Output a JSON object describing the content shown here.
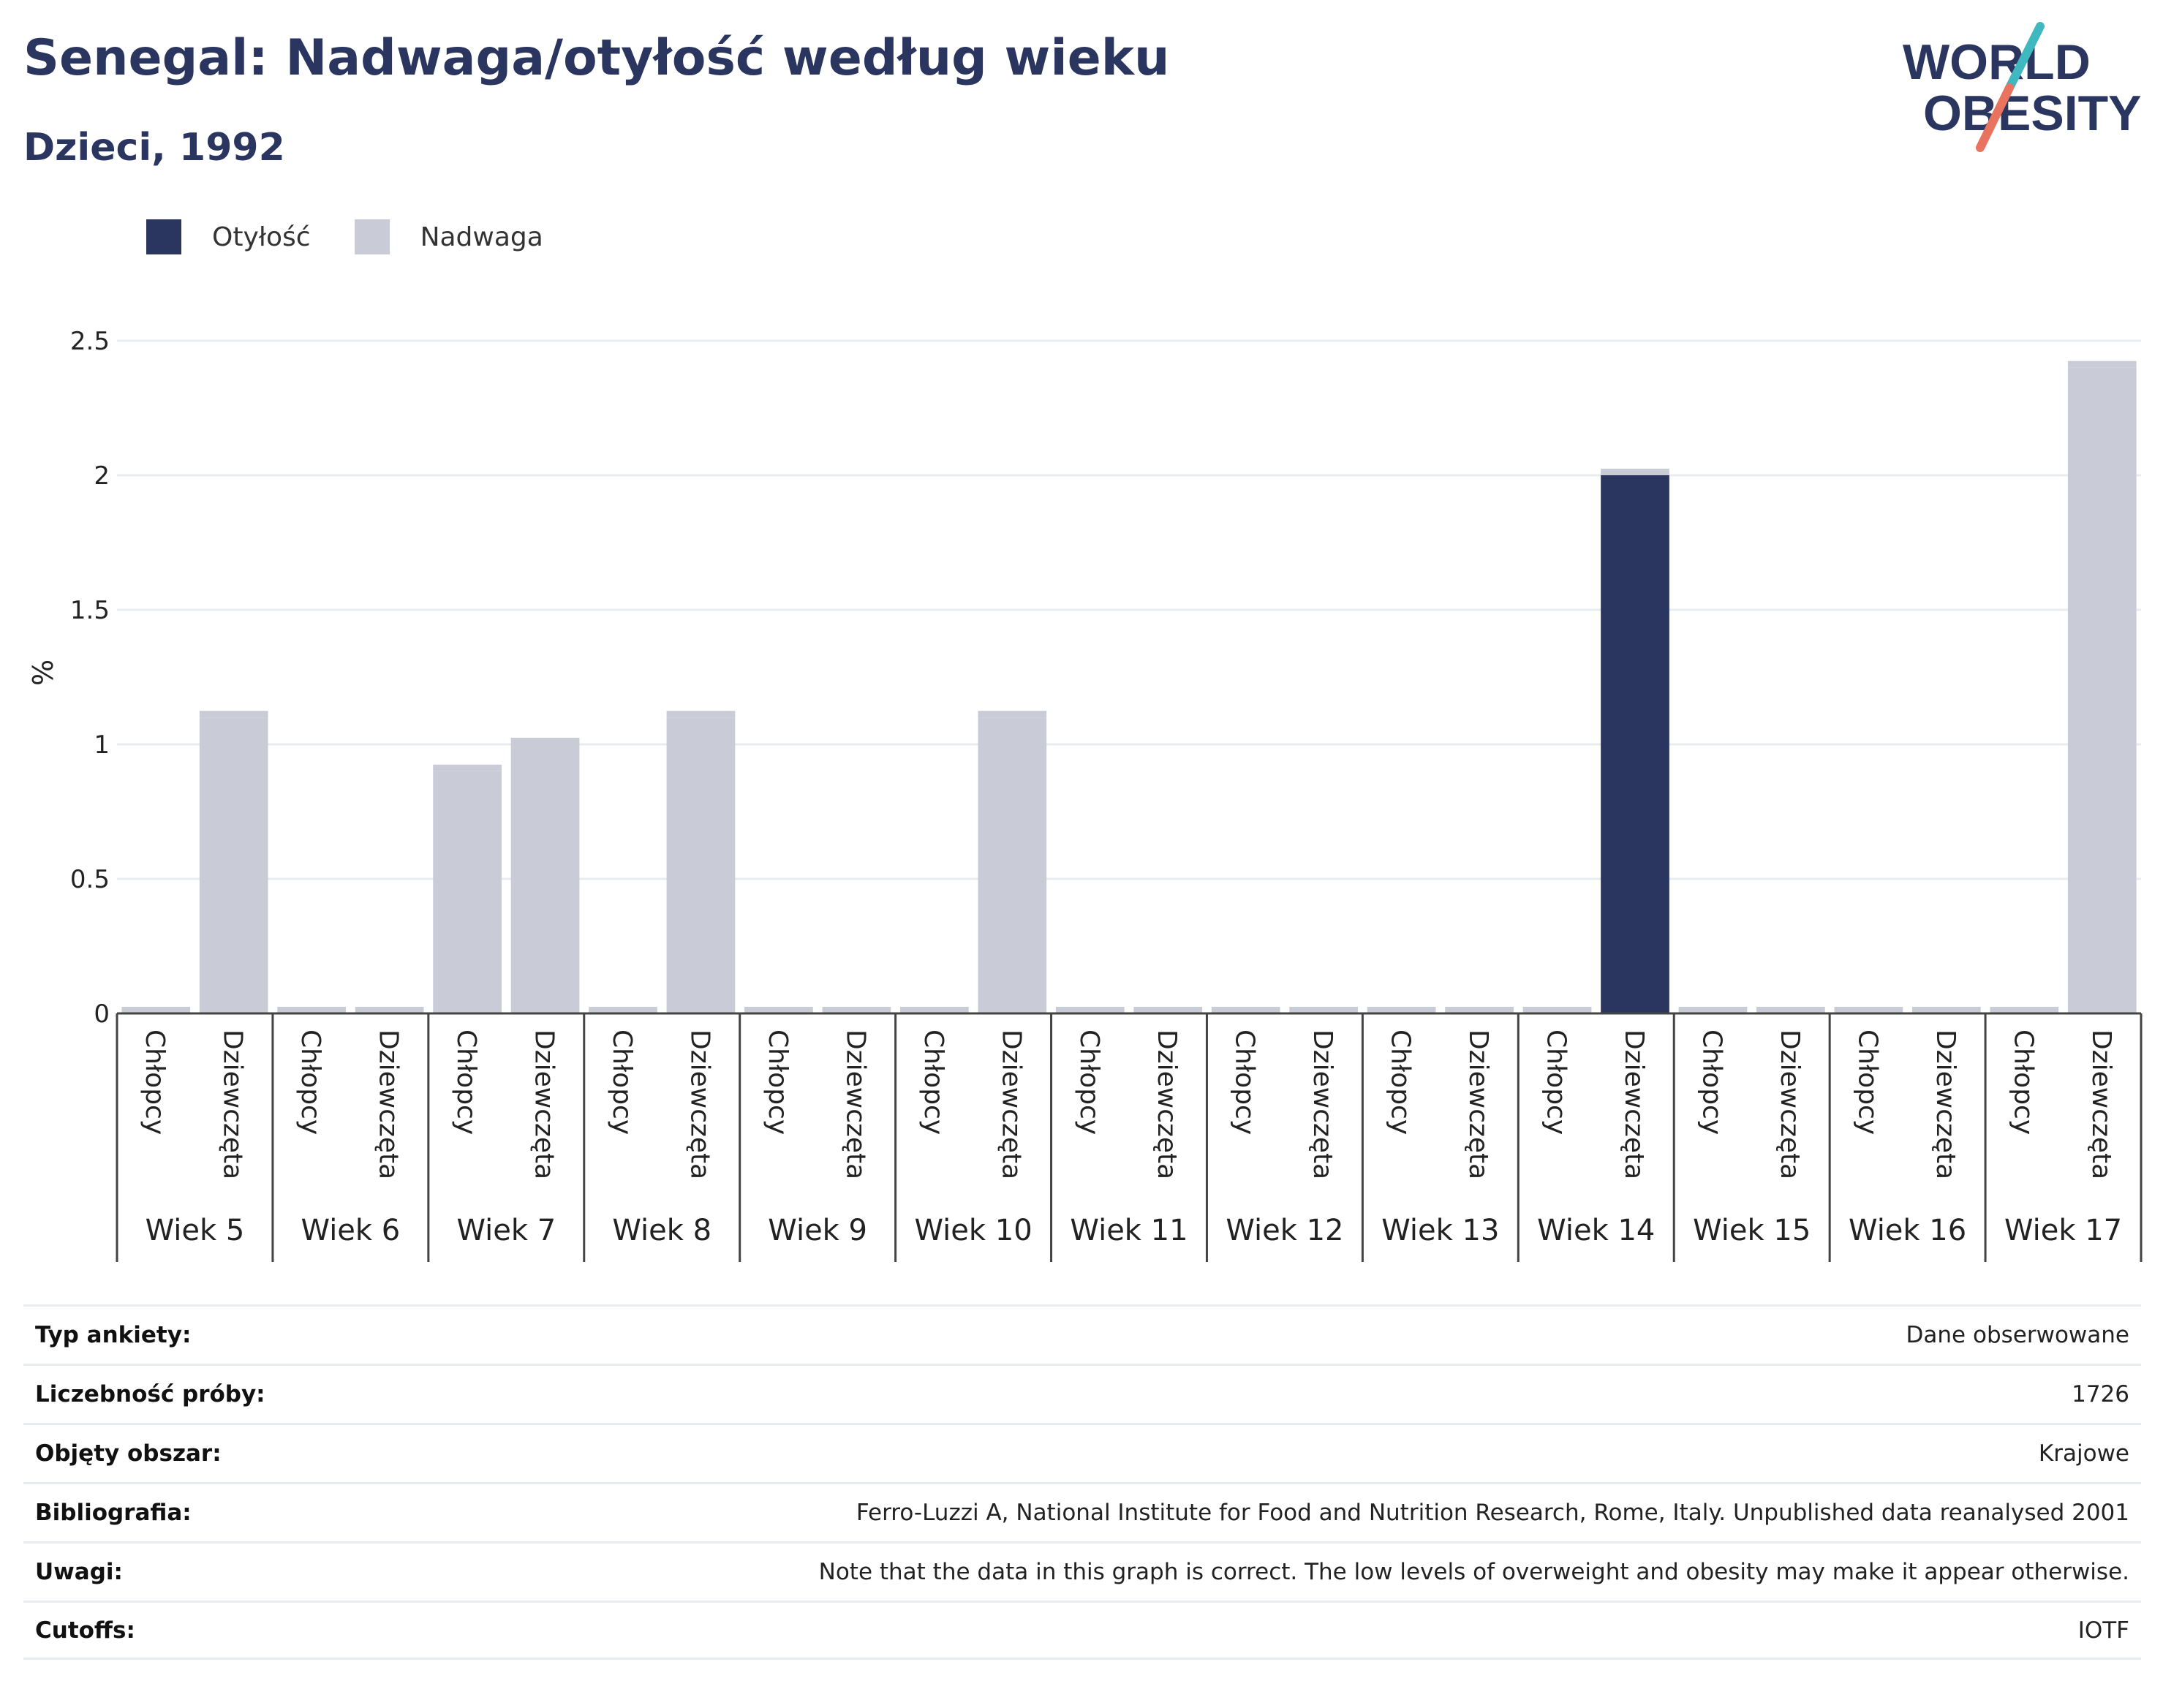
{
  "header": {
    "title": "Senegal: Nadwaga/otyłość według wieku",
    "subtitle": "Dzieci, 1992"
  },
  "logo": {
    "line1": "WORLD",
    "line2": "OBESITY",
    "text_color": "#2a3560",
    "accent_teal": "#3fb8c0",
    "accent_coral": "#e8735f"
  },
  "legend": {
    "items": [
      {
        "label": "Otyłość",
        "color": "#2a3560"
      },
      {
        "label": "Nadwaga",
        "color": "#c9cbd6"
      }
    ]
  },
  "chart_data": {
    "type": "bar",
    "stacked": true,
    "ylabel": "%",
    "ylim": [
      0,
      2.5
    ],
    "yticks": [
      "0",
      "0.5",
      "1",
      "1.5",
      "2",
      "2.5"
    ],
    "grid": true,
    "legend_position": "top-left",
    "groups": [
      "Wiek 5",
      "Wiek 6",
      "Wiek 7",
      "Wiek 8",
      "Wiek 9",
      "Wiek 10",
      "Wiek 11",
      "Wiek 12",
      "Wiek 13",
      "Wiek 14",
      "Wiek 15",
      "Wiek 16",
      "Wiek 17"
    ],
    "subcategories": [
      "Chłopcy",
      "Dziewczęta"
    ],
    "series": [
      {
        "name": "Otyłość",
        "color": "#2a3560",
        "values": [
          0,
          0,
          0,
          0,
          0,
          0,
          0,
          0,
          0,
          0,
          0,
          0,
          0,
          0,
          0,
          0,
          0,
          0,
          0,
          2.0,
          0,
          0,
          0,
          0,
          0,
          0
        ]
      },
      {
        "name": "Nadwaga",
        "color": "#c9cbd6",
        "values": [
          0,
          1.1,
          0,
          0,
          0.9,
          1.0,
          0,
          1.1,
          0,
          0,
          0,
          1.1,
          0,
          0,
          0,
          0,
          0,
          0,
          0,
          0,
          0,
          0,
          0,
          0,
          0,
          2.4
        ]
      }
    ]
  },
  "info": [
    {
      "label": "Typ ankiety:",
      "value": "Dane obserwowane"
    },
    {
      "label": "Liczebność próby:",
      "value": "1726"
    },
    {
      "label": "Objęty obszar:",
      "value": "Krajowe"
    },
    {
      "label": "Bibliografia:",
      "value": "Ferro-Luzzi A, National Institute for Food and Nutrition Research, Rome, Italy. Unpublished data reanalysed 2001"
    },
    {
      "label": "Uwagi:",
      "value": "Note that the data in this graph is correct. The low levels of overweight and obesity may make it appear otherwise."
    },
    {
      "label": "Cutoffs:",
      "value": "IOTF"
    }
  ]
}
